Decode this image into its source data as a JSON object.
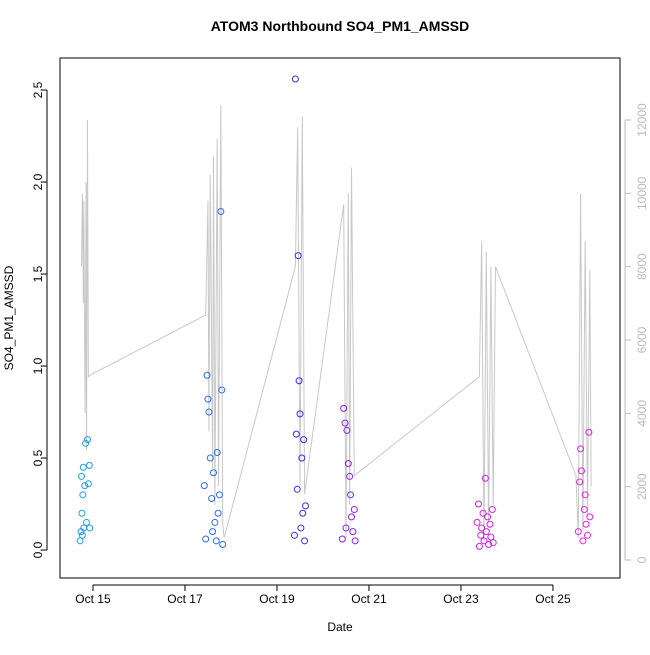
{
  "chart_data": {
    "type": "scatter",
    "title": "ATOM3 Northbound SO4_PM1_AMSSD",
    "xlabel": "Date",
    "ylabel": "SO4_PM1_AMSSD",
    "xlim": [
      14.283,
      26.457
    ],
    "ylim": [
      -0.152,
      2.674
    ],
    "y2lim": [
      -491,
      13691
    ],
    "xticks": [
      {
        "value": 15,
        "label": "Oct 15"
      },
      {
        "value": 17,
        "label": "Oct 17"
      },
      {
        "value": 19,
        "label": "Oct 19"
      },
      {
        "value": 21,
        "label": "Oct 21"
      },
      {
        "value": 23,
        "label": "Oct 23"
      },
      {
        "value": 25,
        "label": "Oct 25"
      }
    ],
    "yticks": [
      {
        "value": 0,
        "label": "0.0"
      },
      {
        "value": 0.5,
        "label": "0.5"
      },
      {
        "value": 1,
        "label": "1.0"
      },
      {
        "value": 1.5,
        "label": "1.5"
      },
      {
        "value": 2,
        "label": "2.0"
      },
      {
        "value": 2.5,
        "label": "2.5"
      }
    ],
    "y2ticks": [
      0,
      2000,
      4000,
      6000,
      8000,
      10000,
      12000
    ],
    "y2color": "#bbbbbb",
    "series": [
      {
        "axis": "y2",
        "color": "#c8c8c8",
        "x": [
          14.75,
          14.77,
          14.79,
          14.8,
          14.83,
          14.85,
          14.86,
          14.88,
          14.9,
          14.95,
          17.45,
          17.5,
          17.52,
          17.55,
          17.6,
          17.62,
          17.65,
          17.7,
          17.73,
          17.78,
          17.82,
          17.85,
          19.4,
          19.45,
          19.5,
          19.55,
          19.6,
          20.45,
          20.5,
          20.55,
          20.58,
          20.62,
          20.68,
          23.4,
          23.45,
          23.5,
          23.55,
          23.6,
          23.65,
          23.7,
          23.75,
          25.5,
          25.55,
          25.6,
          25.65,
          25.7,
          25.75,
          25.8,
          25.83
        ],
        "values": [
          8000,
          10000,
          7000,
          9800,
          4000,
          10300,
          3000,
          12000,
          5000,
          5050,
          6680,
          9800,
          3500,
          10500,
          2500,
          11000,
          1500,
          11500,
          2000,
          12400,
          1000,
          600,
          8000,
          11800,
          2000,
          12100,
          1800,
          9700,
          600,
          10000,
          1500,
          10700,
          2300,
          5000,
          8700,
          500,
          8400,
          1000,
          8000,
          1500,
          8000,
          2300,
          600,
          10000,
          800,
          8700,
          1200,
          7900,
          2000
        ]
      },
      {
        "color": "#1e9ee0",
        "x": [
          14.72,
          14.74,
          14.75,
          14.76,
          14.77,
          14.78,
          14.79,
          14.8,
          14.82,
          14.84,
          14.86,
          14.88,
          14.9,
          14.92,
          14.93
        ],
        "values": [
          0.05,
          0.1,
          0.4,
          0.2,
          0.08,
          0.3,
          0.45,
          0.12,
          0.35,
          0.58,
          0.15,
          0.6,
          0.36,
          0.46,
          0.12
        ]
      },
      {
        "color": "#2a6cf0",
        "x": [
          17.42,
          17.45,
          17.48,
          17.5,
          17.52,
          17.55,
          17.58,
          17.6,
          17.62,
          17.65,
          17.68,
          17.7,
          17.72,
          17.75,
          17.78,
          17.8,
          17.82
        ],
        "values": [
          0.35,
          0.06,
          0.95,
          0.82,
          0.75,
          0.5,
          0.28,
          0.1,
          0.42,
          0.15,
          0.05,
          0.53,
          0.2,
          0.3,
          1.84,
          0.87,
          0.03
        ]
      },
      {
        "color": "#3a2cf0",
        "x": [
          19.38,
          19.4,
          19.42,
          19.44,
          19.46,
          19.48,
          19.5,
          19.52,
          19.54,
          19.56,
          19.58,
          19.6,
          19.62
        ],
        "values": [
          0.08,
          2.56,
          0.63,
          0.33,
          1.6,
          0.92,
          0.74,
          0.12,
          0.5,
          0.2,
          0.6,
          0.05,
          0.24
        ]
      },
      {
        "color": "#8a1ef0",
        "x": [
          20.42,
          20.45,
          20.48,
          20.5,
          20.52,
          20.55,
          20.58,
          20.6,
          20.62,
          20.65,
          20.68,
          20.7
        ],
        "values": [
          0.06,
          0.77,
          0.69,
          0.12,
          0.65,
          0.47,
          0.4,
          0.3,
          0.18,
          0.1,
          0.22,
          0.05
        ]
      },
      {
        "color": "#d21ee8",
        "x": [
          23.35,
          23.38,
          23.4,
          23.43,
          23.45,
          23.48,
          23.5,
          23.53,
          23.55,
          23.58,
          23.6,
          23.63,
          23.65,
          23.68,
          23.7
        ],
        "values": [
          0.15,
          0.25,
          0.02,
          0.08,
          0.12,
          0.2,
          0.05,
          0.39,
          0.1,
          0.18,
          0.03,
          0.14,
          0.07,
          0.22,
          0.04
        ]
      },
      {
        "color": "#f01ee0",
        "x": [
          25.55,
          25.58,
          25.6,
          25.62,
          25.65,
          25.68,
          25.7,
          25.72,
          25.75,
          25.78,
          25.8
        ],
        "values": [
          0.1,
          0.37,
          0.55,
          0.43,
          0.05,
          0.22,
          0.3,
          0.14,
          0.08,
          0.64,
          0.18
        ]
      }
    ]
  }
}
